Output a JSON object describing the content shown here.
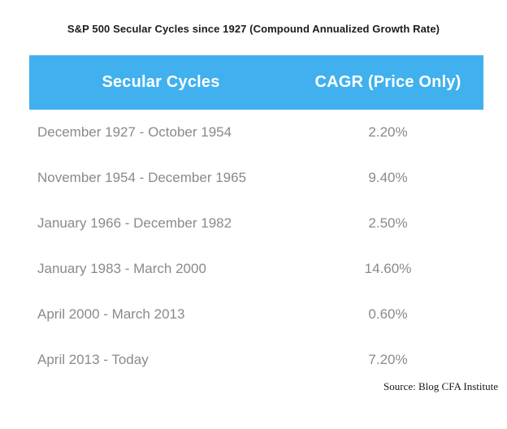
{
  "title": "S&P 500 Secular Cycles since 1927 (Compound Annualized Growth Rate)",
  "chart_data": {
    "type": "table",
    "title": "S&P 500 Secular Cycles since 1927 (Compound Annualized Growth Rate)",
    "columns": {
      "period": "Secular Cycles",
      "cagr": "CAGR (Price Only)"
    },
    "rows": [
      {
        "period": "December 1927 - October 1954",
        "cagr": "2.20%",
        "cagr_value": 2.2
      },
      {
        "period": "November 1954 - December 1965",
        "cagr": "9.40%",
        "cagr_value": 9.4
      },
      {
        "period": "January 1966 - December 1982",
        "cagr": "2.50%",
        "cagr_value": 2.5
      },
      {
        "period": "January 1983 - March 2000",
        "cagr": "14.60%",
        "cagr_value": 14.6
      },
      {
        "period": "April 2000 - March 2013",
        "cagr": "0.60%",
        "cagr_value": 0.6
      },
      {
        "period": "April 2013 - Today",
        "cagr": "7.20%",
        "cagr_value": 7.2
      }
    ],
    "source": "Source: Blog CFA Institute",
    "grid": false,
    "legend_position": "none"
  },
  "colors": {
    "header_background": "#40b1ee",
    "header_text": "#ffffff",
    "row_text": "#8a8a8a",
    "title_text": "#1c1c1c",
    "page_background": "#ffffff"
  }
}
